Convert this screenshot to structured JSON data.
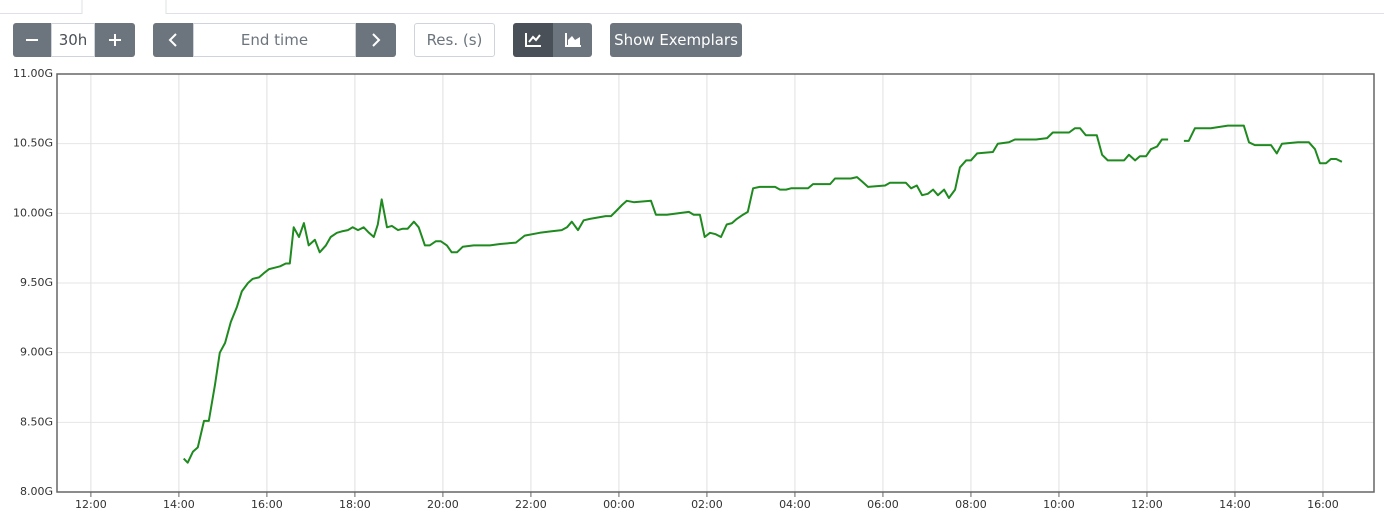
{
  "toolbar": {
    "range": "30h",
    "end_time": "End time",
    "resolution": "Res. (s)",
    "exemplars": "Show Exemplars"
  },
  "chart_data": {
    "type": "line",
    "color": "#1f8a1f",
    "grid": true,
    "xlim": [
      11.23,
      41.16
    ],
    "xticks": [
      {
        "value": 12,
        "label": "12:00"
      },
      {
        "value": 14,
        "label": "14:00"
      },
      {
        "value": 16,
        "label": "16:00"
      },
      {
        "value": 18,
        "label": "18:00"
      },
      {
        "value": 20,
        "label": "20:00"
      },
      {
        "value": 22,
        "label": "22:00"
      },
      {
        "value": 24,
        "label": "00:00"
      },
      {
        "value": 26,
        "label": "02:00"
      },
      {
        "value": 28,
        "label": "04:00"
      },
      {
        "value": 30,
        "label": "06:00"
      },
      {
        "value": 32,
        "label": "08:00"
      },
      {
        "value": 34,
        "label": "10:00"
      },
      {
        "value": 36,
        "label": "12:00"
      },
      {
        "value": 38,
        "label": "14:00"
      },
      {
        "value": 40,
        "label": "16:00"
      }
    ],
    "ylim": [
      8,
      11
    ],
    "yticks": [
      {
        "value": 8,
        "label": "8.00G"
      },
      {
        "value": 8.5,
        "label": "8.50G"
      },
      {
        "value": 9,
        "label": "9.00G"
      },
      {
        "value": 9.5,
        "label": "9.50G"
      },
      {
        "value": 10,
        "label": "10.00G"
      },
      {
        "value": 10.5,
        "label": "10.50G"
      },
      {
        "value": 11,
        "label": "11.00G"
      }
    ],
    "x": [
      14.11,
      14.2,
      14.32,
      14.43,
      14.57,
      14.68,
      14.82,
      14.93,
      15.05,
      15.18,
      15.32,
      15.43,
      15.57,
      15.68,
      15.82,
      15.93,
      16.05,
      16.18,
      16.3,
      16.43,
      16.52,
      16.61,
      16.73,
      16.84,
      16.95,
      17.09,
      17.2,
      17.34,
      17.45,
      17.59,
      17.7,
      17.84,
      17.95,
      18.07,
      18.2,
      18.32,
      18.43,
      18.52,
      18.61,
      18.73,
      18.84,
      18.98,
      19.09,
      19.2,
      19.34,
      19.45,
      19.59,
      19.7,
      19.84,
      19.95,
      20.09,
      20.2,
      20.32,
      20.45,
      20.7,
      21.07,
      21.3,
      21.66,
      21.86,
      22.2,
      22.45,
      22.7,
      22.82,
      22.93,
      23.07,
      23.2,
      23.34,
      23.7,
      23.82,
      23.95,
      24.07,
      24.18,
      24.34,
      24.73,
      24.84,
      25.09,
      25.59,
      25.7,
      25.84,
      25.95,
      26.07,
      26.2,
      26.32,
      26.45,
      26.57,
      26.68,
      26.82,
      26.93,
      27.05,
      27.2,
      27.55,
      27.66,
      27.8,
      27.91,
      28.3,
      28.41,
      28.8,
      28.91,
      29.27,
      29.41,
      29.52,
      29.66,
      30.05,
      30.16,
      30.52,
      30.64,
      30.77,
      30.89,
      31.02,
      31.14,
      31.25,
      31.39,
      31.5,
      31.64,
      31.75,
      31.89,
      32.0,
      32.14,
      32.5,
      32.61,
      32.86,
      33.0,
      33.48,
      33.73,
      33.86,
      34.23,
      34.36,
      34.48,
      34.61,
      34.86,
      34.98,
      35.11,
      35.48,
      35.59,
      35.73,
      35.84,
      35.98,
      36.09,
      36.23,
      36.34,
      36.48,
      36.66,
      36.84,
      36.95,
      37.09,
      37.45,
      37.84,
      38.2,
      38.32,
      38.45,
      38.82,
      38.95,
      39.07,
      39.43,
      39.68,
      39.82,
      39.93,
      40.07,
      40.18,
      40.3,
      40.43
    ],
    "values": [
      8.24,
      8.21,
      8.29,
      8.32,
      8.51,
      8.51,
      8.77,
      9.0,
      9.07,
      9.22,
      9.33,
      9.44,
      9.5,
      9.53,
      9.54,
      9.57,
      9.6,
      9.61,
      9.62,
      9.64,
      9.64,
      9.9,
      9.83,
      9.93,
      9.77,
      9.81,
      9.72,
      9.77,
      9.83,
      9.86,
      9.87,
      9.88,
      9.9,
      9.88,
      9.9,
      9.86,
      9.83,
      9.92,
      10.1,
      9.9,
      9.91,
      9.88,
      9.89,
      9.89,
      9.94,
      9.9,
      9.77,
      9.77,
      9.8,
      9.8,
      9.77,
      9.72,
      9.72,
      9.76,
      9.77,
      9.77,
      9.78,
      9.79,
      9.84,
      9.86,
      9.87,
      9.88,
      9.9,
      9.94,
      9.88,
      9.95,
      9.96,
      9.98,
      9.98,
      10.02,
      10.06,
      10.09,
      10.08,
      10.09,
      9.99,
      9.99,
      10.01,
      9.99,
      9.99,
      9.83,
      9.86,
      9.85,
      9.83,
      9.92,
      9.93,
      9.96,
      9.99,
      10.01,
      10.18,
      10.19,
      10.19,
      10.17,
      10.17,
      10.18,
      10.18,
      10.21,
      10.21,
      10.25,
      10.25,
      10.26,
      10.23,
      10.19,
      10.2,
      10.22,
      10.22,
      10.18,
      10.2,
      10.13,
      10.14,
      10.17,
      10.13,
      10.17,
      10.11,
      10.17,
      10.33,
      10.38,
      10.38,
      10.43,
      10.44,
      10.5,
      10.51,
      10.53,
      10.53,
      10.54,
      10.58,
      10.58,
      10.61,
      10.61,
      10.56,
      10.56,
      10.42,
      10.38,
      10.38,
      10.42,
      10.38,
      10.41,
      10.41,
      10.46,
      10.48,
      10.53,
      10.53,
      null,
      10.52,
      10.52,
      10.61,
      10.61,
      10.63,
      10.63,
      10.51,
      10.49,
      10.49,
      10.43,
      10.5,
      10.51,
      10.51,
      10.46,
      10.36,
      10.36,
      10.39,
      10.39,
      10.37
    ]
  }
}
